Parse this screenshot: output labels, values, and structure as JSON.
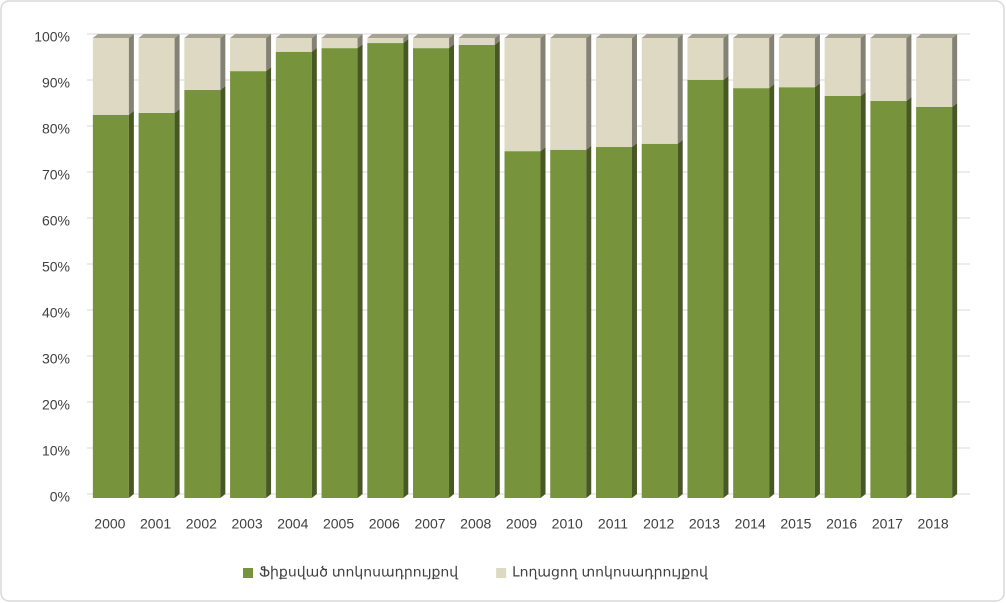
{
  "chart_data": {
    "type": "stacked_bar_3d",
    "categories": [
      "2000",
      "2001",
      "2002",
      "2003",
      "2004",
      "2005",
      "2006",
      "2007",
      "2008",
      "2009",
      "2010",
      "2011",
      "2012",
      "2013",
      "2014",
      "2015",
      "2016",
      "2017",
      "2018"
    ],
    "series": [
      {
        "name": "Ֆիքսված տոկոսադրույքով",
        "color": "#77933c",
        "values": [
          83.3,
          83.7,
          88.7,
          92.8,
          97.0,
          97.8,
          98.9,
          97.8,
          98.5,
          75.4,
          75.7,
          76.3,
          77.0,
          90.9,
          89.1,
          89.3,
          87.4,
          86.3,
          85.0
        ]
      },
      {
        "name": "Լողացող տոկոսադրույքով",
        "color": "#ddd9c3",
        "values": [
          16.7,
          16.3,
          11.3,
          7.2,
          3.0,
          2.2,
          1.1,
          2.2,
          1.5,
          24.6,
          24.3,
          23.7,
          23.0,
          9.1,
          10.9,
          10.7,
          12.6,
          13.7,
          15.0
        ]
      }
    ],
    "ylim": [
      0,
      100
    ],
    "yticks": [
      {
        "value": 0,
        "label": "0%"
      },
      {
        "value": 10,
        "label": "10%"
      },
      {
        "value": 20,
        "label": "20%"
      },
      {
        "value": 30,
        "label": "30%"
      },
      {
        "value": 40,
        "label": "40%"
      },
      {
        "value": 50,
        "label": "50%"
      },
      {
        "value": 60,
        "label": "60%"
      },
      {
        "value": 70,
        "label": "70%"
      },
      {
        "value": 80,
        "label": "80%"
      },
      {
        "value": 90,
        "label": "90%"
      },
      {
        "value": 100,
        "label": "100%"
      }
    ],
    "grid": true,
    "legend": "bottom"
  }
}
